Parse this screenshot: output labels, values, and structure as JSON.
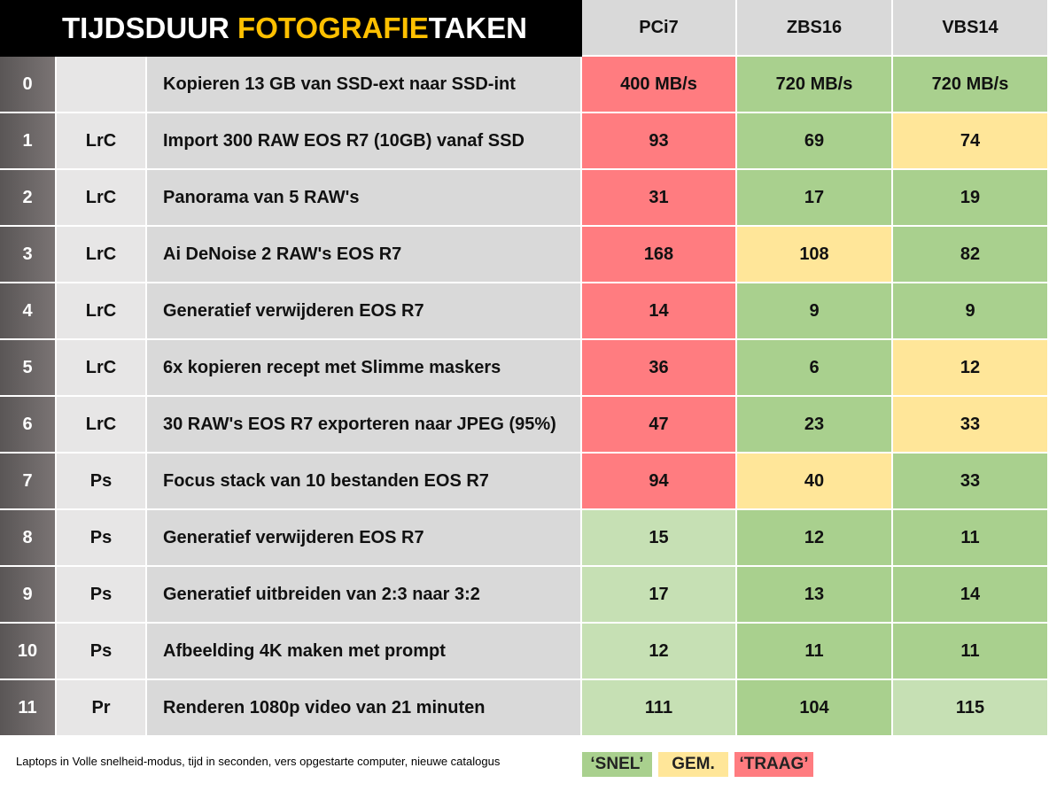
{
  "header": {
    "title_parts": [
      "TIJDSDUUR ",
      "FOTOGRAFIE",
      "TAKEN"
    ],
    "title_highlight_color": "#ffc000",
    "columns": [
      "PCi7",
      "ZBS16",
      "VBS14"
    ]
  },
  "rows": [
    {
      "index": 0,
      "task": "Kopieren 13 GB van SSD-ext naar SSD-int",
      "values": [
        "400 MB/s",
        "720 MB/s",
        "720 MB/s"
      ],
      "colors": [
        "#ff7c80",
        "#a9d08e",
        "#a9d08e"
      ]
    },
    {
      "index": 1,
      "app": "LrC",
      "task": "Import 300 RAW EOS R7 (10GB) vanaf SSD",
      "values": [
        93,
        69,
        74
      ],
      "colors": [
        "#ff7c80",
        "#a9d08e",
        "#ffe699"
      ]
    },
    {
      "index": 2,
      "app": "LrC",
      "task": "Panorama van 5 RAW's",
      "values": [
        31,
        17,
        19
      ],
      "colors": [
        "#ff7c80",
        "#a9d08e",
        "#a9d08e"
      ]
    },
    {
      "index": 3,
      "app": "LrC",
      "task": "Ai DeNoise 2 RAW's EOS R7",
      "values": [
        168,
        108,
        82
      ],
      "colors": [
        "#ff7c80",
        "#ffe699",
        "#a9d08e"
      ]
    },
    {
      "index": 4,
      "app": "LrC",
      "task": "Generatief verwijderen EOS R7",
      "values": [
        14,
        9,
        9
      ],
      "colors": [
        "#ff7c80",
        "#a9d08e",
        "#a9d08e"
      ]
    },
    {
      "index": 5,
      "app": "LrC",
      "task": "6x kopieren recept met Slimme maskers",
      "values": [
        36,
        6,
        12
      ],
      "colors": [
        "#ff7c80",
        "#a9d08e",
        "#ffe699"
      ]
    },
    {
      "index": 6,
      "app": "LrC",
      "task": "30 RAW's EOS R7 exporteren naar JPEG (95%)",
      "values": [
        47,
        23,
        33
      ],
      "colors": [
        "#ff7c80",
        "#a9d08e",
        "#ffe699"
      ]
    },
    {
      "index": 7,
      "app": "Ps",
      "task": "Focus stack van 10 bestanden EOS R7",
      "values": [
        94,
        40,
        33
      ],
      "colors": [
        "#ff7c80",
        "#ffe699",
        "#a9d08e"
      ]
    },
    {
      "index": 8,
      "app": "Ps",
      "task": "Generatief verwijderen EOS R7",
      "values": [
        15,
        12,
        11
      ],
      "colors": [
        "#c6e0b4",
        "#a9d08e",
        "#a9d08e"
      ]
    },
    {
      "index": 9,
      "app": "Ps",
      "task": "Generatief uitbreiden van 2:3 naar 3:2",
      "values": [
        17,
        13,
        14
      ],
      "colors": [
        "#c6e0b4",
        "#a9d08e",
        "#a9d08e"
      ]
    },
    {
      "index": 10,
      "app": "Ps",
      "task": "Afbeelding 4K maken met prompt",
      "values": [
        12,
        11,
        11
      ],
      "colors": [
        "#c6e0b4",
        "#a9d08e",
        "#a9d08e"
      ]
    },
    {
      "index": 11,
      "app": "Pr",
      "task": "Renderen 1080p video van 21 minuten",
      "values": [
        111,
        104,
        115
      ],
      "colors": [
        "#c6e0b4",
        "#a9d08e",
        "#c6e0b4"
      ]
    }
  ],
  "footer": {
    "note": "Laptops in Volle snelheid-modus, tijd in seconden, vers opgestarte computer, nieuwe catalogus",
    "legend": [
      {
        "label": "‘SNEL’",
        "color": "#a9d08e"
      },
      {
        "label": "GEM.",
        "color": "#ffe699"
      },
      {
        "label": "‘TRAAG’",
        "color": "#ff7c80"
      }
    ]
  }
}
